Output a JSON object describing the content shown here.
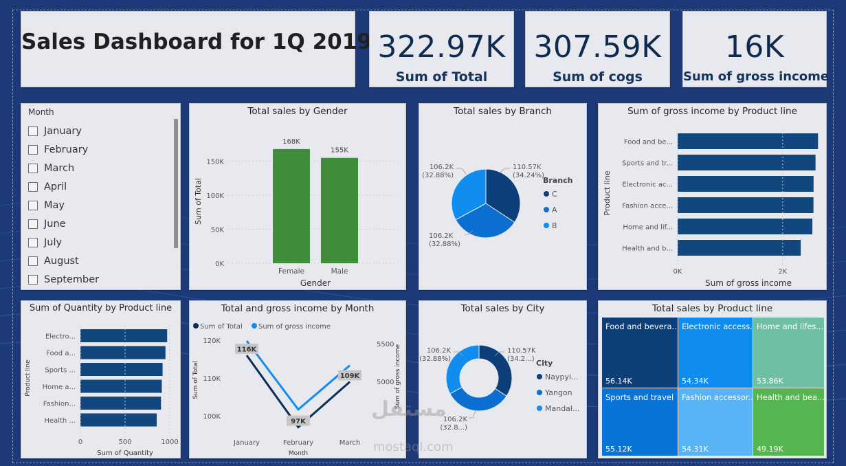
{
  "dashboard": {
    "title": "Sales Dashboard for 1Q 2019"
  },
  "kpis": [
    {
      "value": "322.97K",
      "label": "Sum of Total"
    },
    {
      "value": "307.59K",
      "label": "Sum of cogs"
    },
    {
      "value": "16K",
      "label": "Sum of gross income"
    }
  ],
  "slicer": {
    "title": "Month",
    "items": [
      "January",
      "February",
      "March",
      "April",
      "May",
      "June",
      "July",
      "August",
      "September"
    ]
  },
  "watermark": {
    "logo": "مستقل",
    "site": "mostaql.com"
  },
  "colors": {
    "dark_blue": "#12467f",
    "green": "#3f8c3a",
    "navy": "#0c2d57",
    "mid_blue": "#0a6fd0",
    "light_blue": "#118df0"
  },
  "chart_data": [
    {
      "id": "gender",
      "type": "bar",
      "title": "Total sales by Gender",
      "xlabel": "Gender",
      "ylabel": "Sum of Total",
      "categories": [
        "Female",
        "Male"
      ],
      "values": [
        168000,
        155000
      ],
      "data_labels": [
        "168K",
        "155K"
      ],
      "yticks": [
        "0K",
        "50K",
        "100K",
        "150K"
      ],
      "ylim": [
        0,
        180000
      ],
      "color": "#3f8c3a"
    },
    {
      "id": "branch",
      "type": "pie",
      "title": "Total sales by Branch",
      "legend_title": "Branch",
      "labels": [
        "C",
        "A",
        "B"
      ],
      "values": [
        110570,
        106200,
        106200
      ],
      "value_labels": [
        "110.57K",
        "106.2K",
        "106.2K"
      ],
      "percent_labels": [
        "(34.24%)",
        "(32.88%)",
        "(32.88%)"
      ],
      "colors": [
        "#0c3f7a",
        "#0a6fd0",
        "#118df0"
      ]
    },
    {
      "id": "gross_product",
      "type": "bar",
      "orientation": "horizontal",
      "title": "Sum of gross income by Product line",
      "xlabel": "Sum of gross income",
      "ylabel": "Product line",
      "categories": [
        "Food and be...",
        "Sports and tr...",
        "Electronic ac...",
        "Fashion acce...",
        "Home and lif...",
        "Health and b..."
      ],
      "values": [
        2673,
        2625,
        2588,
        2586,
        2565,
        2343
      ],
      "xticks": [
        "0K",
        "2K"
      ],
      "xlim": [
        0,
        2800
      ],
      "color": "#12467f"
    },
    {
      "id": "quantity_product",
      "type": "bar",
      "orientation": "horizontal",
      "title": "Sum of Quantity by Product line",
      "xlabel": "Sum of Quantity",
      "ylabel": "Product line",
      "categories": [
        "Electro...",
        "Food a...",
        "Sports ...",
        "Home a...",
        "Fashion...",
        "Health ..."
      ],
      "values": [
        971,
        952,
        920,
        911,
        902,
        854
      ],
      "xticks": [
        "0",
        "500",
        "1000"
      ],
      "xlim": [
        0,
        1000
      ],
      "color": "#12467f"
    },
    {
      "id": "month_line",
      "type": "line",
      "title": "Total and gross income by Month",
      "xlabel": "Month",
      "ylabel": "Sum of Total",
      "ylabel2": "Sum of gross income",
      "categories": [
        "January",
        "February",
        "March"
      ],
      "yticks_left": [
        "100K",
        "110K",
        "120K"
      ],
      "yticks_right": [
        "5000",
        "5500"
      ],
      "series": [
        {
          "name": "Sum of Total",
          "values": [
            116000,
            97000,
            109000
          ],
          "labels": [
            "116K",
            "97K",
            "109K"
          ],
          "color": "#0c2d57"
        },
        {
          "name": "Sum of gross income",
          "values": [
            5537,
            4629,
            5212
          ],
          "color": "#118df0"
        }
      ]
    },
    {
      "id": "city",
      "type": "pie",
      "donut": true,
      "title": "Total sales by City",
      "legend_title": "City",
      "labels": [
        "Naypyi...",
        "Yangon",
        "Mandal..."
      ],
      "values": [
        110570,
        106200,
        106200
      ],
      "value_labels": [
        "110.57K",
        "106.2K",
        "106.2K"
      ],
      "percent_labels": [
        "(34.2...)",
        "(32.8...)",
        "(32.88%)"
      ],
      "colors": [
        "#0c3f7a",
        "#0a6fd0",
        "#118df0"
      ]
    },
    {
      "id": "treemap",
      "type": "treemap",
      "title": "Total sales by Product line",
      "items": [
        {
          "name": "Food and bevera...",
          "value": "56.14K",
          "color": "#0e3f78"
        },
        {
          "name": "Electronic access...",
          "value": "54.34K",
          "color": "#0f8cf0"
        },
        {
          "name": "Home and lifes...",
          "value": "53.86K",
          "color": "#6fbfa5"
        },
        {
          "name": "Sports and travel",
          "value": "55.12K",
          "color": "#0a74d6"
        },
        {
          "name": "Fashion accessor...",
          "value": "54.31K",
          "color": "#58b4f5"
        },
        {
          "name": "Health and bea...",
          "value": "49.19K",
          "color": "#55b550"
        }
      ]
    }
  ]
}
